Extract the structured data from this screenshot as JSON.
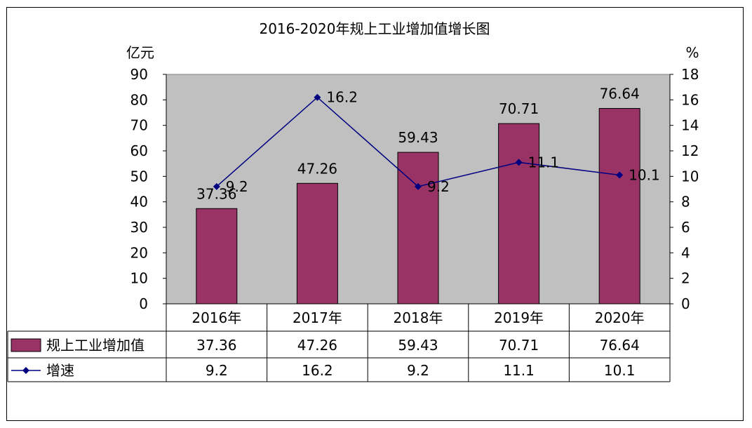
{
  "chart_data": {
    "type": "bar+line",
    "title": "2016-2020年规上工业增加值增长图",
    "categories": [
      "2016年",
      "2017年",
      "2018年",
      "2019年",
      "2020年"
    ],
    "left_axis": {
      "unit": "亿元",
      "ylim": [
        0,
        90
      ],
      "ticks": [
        "0",
        "10",
        "20",
        "30",
        "40",
        "50",
        "60",
        "70",
        "80",
        "90"
      ]
    },
    "right_axis": {
      "unit": "%",
      "ylim": [
        0,
        18
      ],
      "ticks": [
        "0",
        "2",
        "4",
        "6",
        "8",
        "10",
        "12",
        "14",
        "16",
        "18"
      ]
    },
    "series": [
      {
        "name": "规上工业增加值",
        "type": "bar",
        "axis": "left",
        "values": [
          37.36,
          47.26,
          59.43,
          70.71,
          76.64
        ],
        "labels": [
          "37.36",
          "47.26",
          "59.43",
          "70.71",
          "76.64"
        ],
        "color": "#993366"
      },
      {
        "name": "增速",
        "type": "line",
        "axis": "right",
        "values": [
          9.2,
          16.2,
          9.2,
          11.1,
          10.1
        ],
        "labels": [
          "9.2",
          "16.2",
          "9.2",
          "11.1",
          "10.1"
        ],
        "color": "#000080"
      }
    ],
    "plot_background": "#c0c0c0",
    "grid": false,
    "legend": "data-table"
  }
}
